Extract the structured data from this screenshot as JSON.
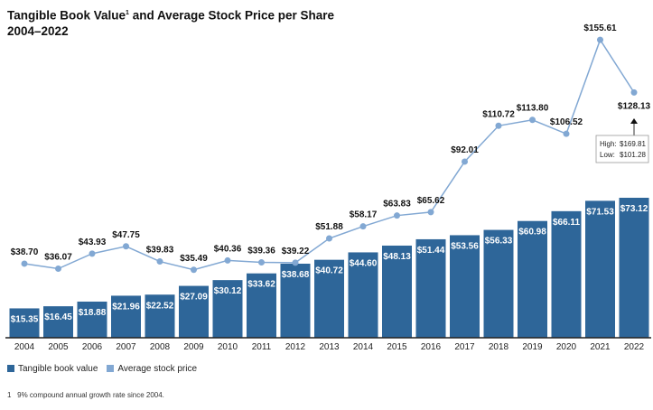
{
  "chart_data": {
    "type": "bar",
    "title": "Tangible Book Value",
    "title_sup": "1",
    "title_rest": " and Average Stock Price per Share",
    "subtitle": "2004–2022",
    "categories": [
      "2004",
      "2005",
      "2006",
      "2007",
      "2008",
      "2009",
      "2010",
      "2011",
      "2012",
      "2013",
      "2014",
      "2015",
      "2016",
      "2017",
      "2018",
      "2019",
      "2020",
      "2021",
      "2022"
    ],
    "series": [
      {
        "name": "Tangible book value",
        "type": "bar",
        "color": "#2e6699",
        "values": [
          15.35,
          16.45,
          18.88,
          21.96,
          22.52,
          27.09,
          30.12,
          33.62,
          38.68,
          40.72,
          44.6,
          48.13,
          51.44,
          53.56,
          56.33,
          60.98,
          66.11,
          71.53,
          73.12
        ],
        "labels": [
          "$15.35",
          "$16.45",
          "$18.88",
          "$21.96",
          "$22.52",
          "$27.09",
          "$30.12",
          "$33.62",
          "$38.68",
          "$40.72",
          "$44.60",
          "$48.13",
          "$51.44",
          "$53.56",
          "$56.33",
          "$60.98",
          "$66.11",
          "$71.53",
          "$73.12"
        ]
      },
      {
        "name": "Average stock price",
        "type": "line",
        "color": "#82a8d3",
        "values": [
          38.7,
          36.07,
          43.93,
          47.75,
          39.83,
          35.49,
          40.36,
          39.36,
          39.22,
          51.88,
          58.17,
          63.83,
          65.62,
          92.01,
          110.72,
          113.8,
          106.52,
          155.61,
          128.13
        ],
        "labels": [
          "$38.70",
          "$36.07",
          "$43.93",
          "$47.75",
          "$39.83",
          "$35.49",
          "$40.36",
          "$39.36",
          "$39.22",
          "$51.88",
          "$58.17",
          "$63.83",
          "$65.62",
          "$92.01",
          "$110.72",
          "$113.80",
          "$106.52",
          "$155.61",
          "$128.13"
        ]
      }
    ],
    "annotation": {
      "category": "2022",
      "high_label": "High:",
      "high": "$169.81",
      "low_label": "Low:",
      "low": "$101.28"
    },
    "ylim": [
      0,
      175
    ],
    "grid": false,
    "legend_position": "bottom-left"
  },
  "footnote": {
    "marker": "1",
    "text": "9% compound annual growth rate since 2004."
  }
}
